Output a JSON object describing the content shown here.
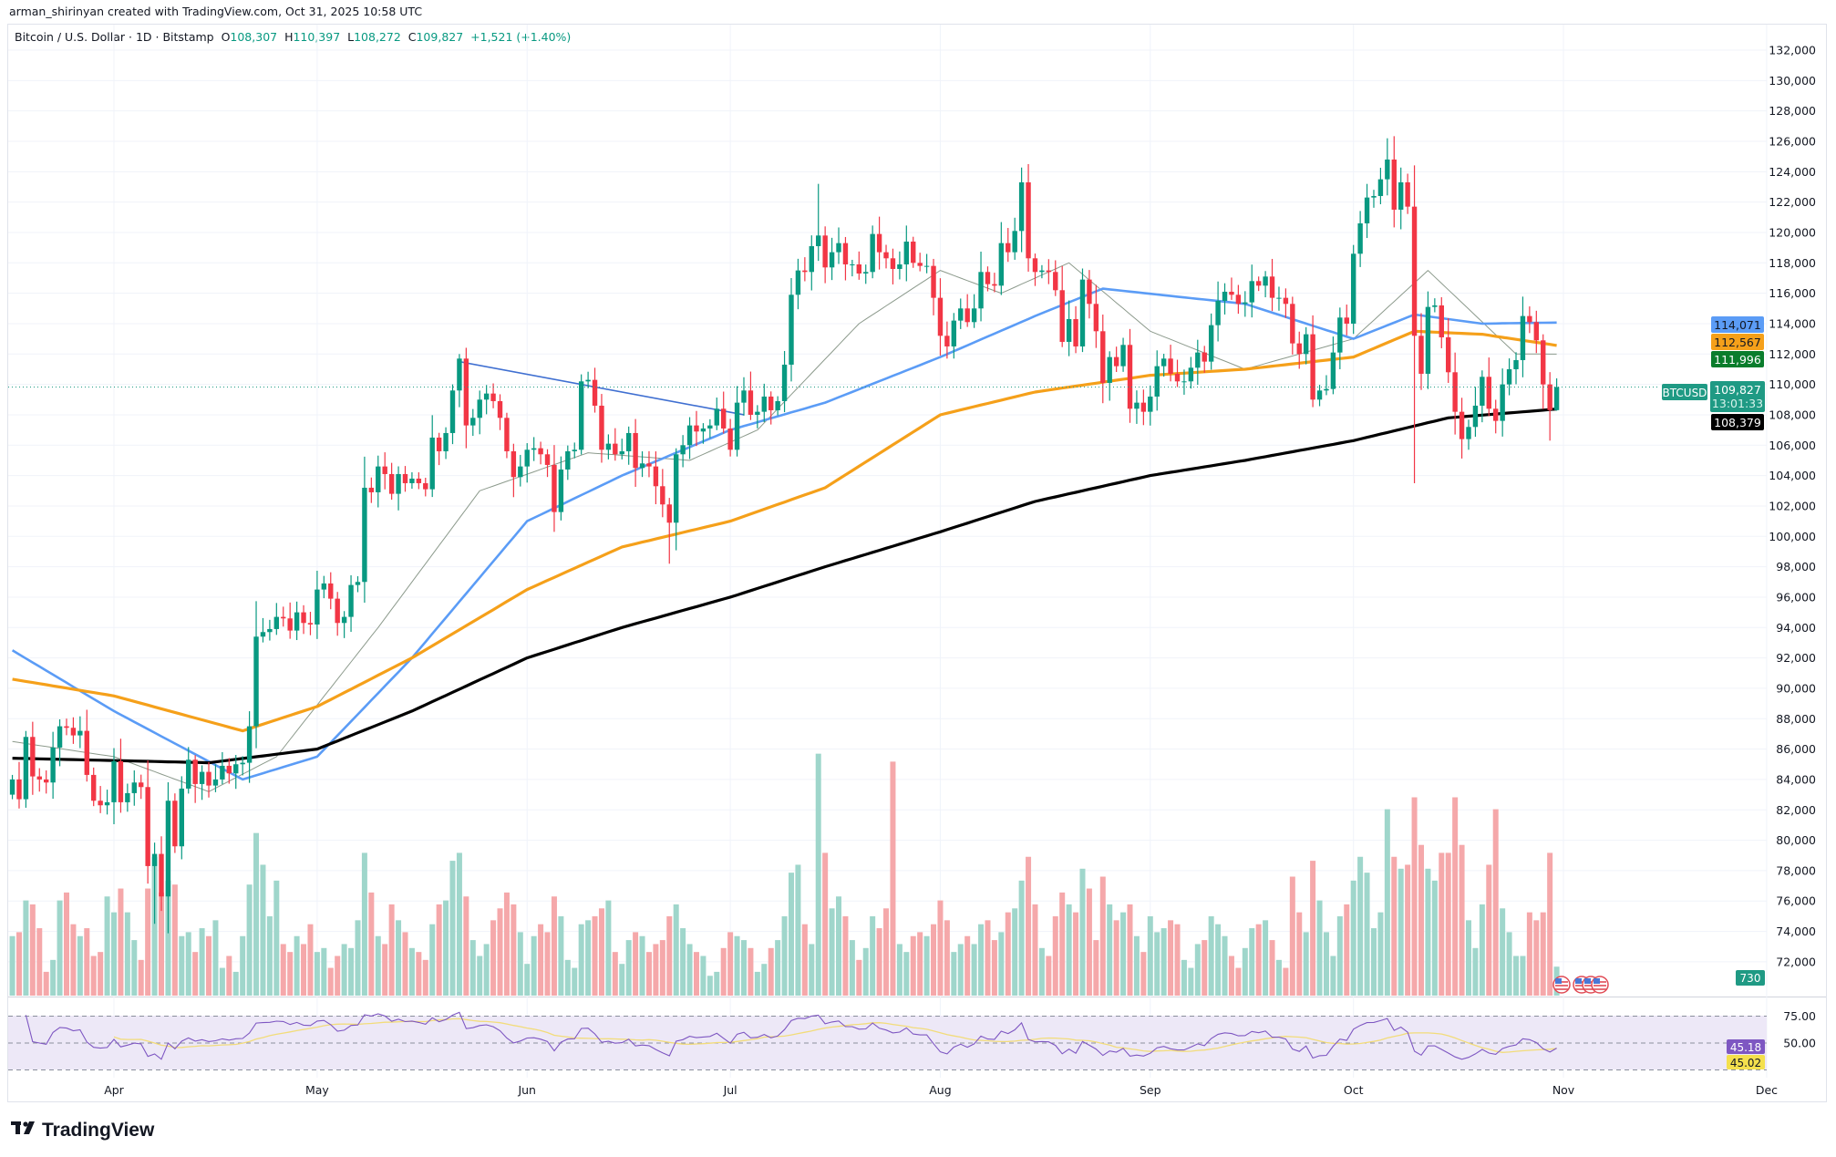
{
  "attribution": "arman_shirinyan created with TradingView.com, Oct 31, 2025 10:58 UTC",
  "legend": {
    "symbol": "Bitcoin / U.S. Dollar · 1D · Bitstamp",
    "o_label": "O",
    "o": "108,307",
    "h_label": "H",
    "h": "110,397",
    "l_label": "L",
    "l": "108,272",
    "c_label": "C",
    "c": "109,827",
    "change": "+1,521 (+1.40%)"
  },
  "tags": {
    "sma50": "114,071",
    "sma100": "112,567",
    "sma20": "111,996",
    "symbol": "BTCUSD",
    "last_price": "109,827",
    "countdown": "13:01:33",
    "sma200": "108,379",
    "volume": "730",
    "rsi": "45.18",
    "rsi_ma": "45.02"
  },
  "logo": {
    "mark": "17",
    "name": "TradingView"
  },
  "colors": {
    "up": "#089981",
    "down": "#f23645",
    "vol_up": "#9fd6cb",
    "vol_down": "#f5a8aa",
    "sma20": "#8c9a8c",
    "sma50": "#5b9cf6",
    "sma100": "#f5a01a",
    "sma200": "#000000",
    "trendline": "#3f6fd1",
    "rsi": "#7e57c2",
    "rsi_ma": "#f2dc7a",
    "rsi_band": "#ede8f7",
    "tag_green": "#0a7d2c",
    "tag_teal": "#1f9a84"
  },
  "chart_data": {
    "type": "candlestick",
    "interval": "1D",
    "start": "2025-03-17",
    "y_ticks": [
      132000,
      130000,
      128000,
      126000,
      124000,
      122000,
      120000,
      118000,
      116000,
      114000,
      112000,
      110000,
      108000,
      106000,
      104000,
      102000,
      100000,
      98000,
      96000,
      94000,
      92000,
      90000,
      88000,
      86000,
      84000,
      82000,
      80000,
      78000,
      76000,
      74000,
      72000
    ],
    "ylim": [
      71000,
      133000
    ],
    "x_ticks": [
      {
        "label": "Apr",
        "date": "2025-04-01"
      },
      {
        "label": "May",
        "date": "2025-05-01"
      },
      {
        "label": "Jun",
        "date": "2025-06-01"
      },
      {
        "label": "Jul",
        "date": "2025-07-01"
      },
      {
        "label": "Aug",
        "date": "2025-08-01"
      },
      {
        "label": "Sep",
        "date": "2025-09-01"
      },
      {
        "label": "Oct",
        "date": "2025-10-01"
      },
      {
        "label": "Nov",
        "date": "2025-11-01"
      },
      {
        "label": "Dec",
        "date": "2025-12-01"
      }
    ],
    "first_open": 83000,
    "closes": [
      84000,
      82700,
      86800,
      84200,
      84000,
      83800,
      86100,
      87500,
      87400,
      86900,
      87200,
      84300,
      82600,
      82300,
      82500,
      85200,
      82500,
      83100,
      83800,
      83500,
      78300,
      79100,
      76300,
      82600,
      79600,
      83400,
      85300,
      83700,
      84500,
      83600,
      84000,
      84900,
      84400,
      85000,
      85100,
      87500,
      93400,
      93700,
      93900,
      94700,
      94600,
      93800,
      95000,
      94300,
      94200,
      96500,
      96900,
      95900,
      94300,
      94700,
      96800,
      97000,
      103200,
      102900,
      104600,
      104100,
      102800,
      104100,
      103500,
      103800,
      103500,
      103100,
      106500,
      105600,
      106800,
      109600,
      111700,
      107300,
      107800,
      109000,
      109400,
      108900,
      107800,
      105600,
      103900,
      104600,
      105700,
      105800,
      105400,
      104700,
      101600,
      104400,
      105600,
      105700,
      110200,
      110300,
      108600,
      105700,
      106100,
      105400,
      105600,
      106800,
      104500,
      104800,
      104600,
      103300,
      102100,
      100900,
      105400,
      106000,
      107300,
      106900,
      107100,
      107300,
      108400,
      107100,
      105700,
      108800,
      109600,
      108000,
      108200,
      109200,
      108300,
      108900,
      111300,
      115900,
      117500,
      117400,
      119100,
      119800,
      117700,
      118700,
      119300,
      117900,
      117900,
      117300,
      117400,
      119900,
      118700,
      118300,
      117600,
      117900,
      119400,
      118000,
      117800,
      117800,
      115700,
      113200,
      112500,
      114200,
      115000,
      114100,
      115000,
      117400,
      116600,
      116500,
      119300,
      118700,
      120100,
      123300,
      118300,
      117400,
      117500,
      117400,
      116200,
      112800,
      114300,
      112500,
      116900,
      115300,
      113500,
      110100,
      111800,
      111200,
      112600,
      108400,
      108800,
      108200,
      109200,
      111200,
      111700,
      110700,
      110200,
      110200,
      111100,
      112100,
      111500,
      113900,
      115500,
      116100,
      115900,
      115300,
      115400,
      116800,
      116500,
      117100,
      115700,
      115700,
      115300,
      112700,
      112000,
      113300,
      109000,
      109600,
      109700,
      112100,
      114400,
      114000,
      118600,
      120600,
      122300,
      122400,
      123500,
      124800,
      121500,
      123300,
      121700,
      113200,
      110700,
      115100,
      115200,
      113100,
      110800,
      108200,
      106400,
      107200,
      108600,
      110500,
      108400,
      107600,
      110000,
      111000,
      111600,
      114500,
      114100,
      112900,
      110000,
      108307,
      109827
    ],
    "last_candle": {
      "date": "2025-10-31",
      "open": 108307,
      "high": 110397,
      "low": 108272,
      "close": 109827
    },
    "notable_wicks": [
      {
        "date": "2025-04-07",
        "low": 74500
      },
      {
        "date": "2025-06-22",
        "low": 98200
      },
      {
        "date": "2025-05-22",
        "high": 112000
      },
      {
        "date": "2025-07-14",
        "high": 123200
      },
      {
        "date": "2025-08-14",
        "high": 124500
      },
      {
        "date": "2025-10-06",
        "high": 126200
      },
      {
        "date": "2025-10-10",
        "low": 103500
      },
      {
        "date": "2025-10-30",
        "low": 106300
      }
    ],
    "volume": [
      1500,
      1600,
      2400,
      2300,
      1700,
      600,
      900,
      2400,
      2600,
      1800,
      1500,
      1700,
      1000,
      1100,
      2500,
      2100,
      2700,
      2100,
      1400,
      900,
      2700,
      3500,
      2600,
      2900,
      2800,
      1500,
      1600,
      1100,
      1700,
      1500,
      1900,
      700,
      1000,
      600,
      1500,
      2800,
      4100,
      3300,
      2000,
      2900,
      1300,
      1100,
      1500,
      1300,
      1800,
      1100,
      1200,
      700,
      1000,
      1300,
      1200,
      1900,
      3600,
      2600,
      1500,
      1300,
      2300,
      1900,
      1600,
      1200,
      1100,
      900,
      1800,
      2300,
      2400,
      3400,
      3600,
      2500,
      1400,
      1000,
      1300,
      1900,
      2200,
      2600,
      2300,
      1600,
      800,
      1500,
      1800,
      1600,
      2500,
      2000,
      900,
      700,
      1800,
      1900,
      2000,
      2200,
      2400,
      1100,
      800,
      1400,
      1600,
      1500,
      1100,
      1300,
      1400,
      2000,
      2300,
      1700,
      1300,
      1100,
      1000,
      500,
      600,
      1200,
      1600,
      1500,
      1400,
      1200,
      600,
      800,
      1200,
      1400,
      2000,
      3100,
      3300,
      1800,
      1300,
      6100,
      3600,
      2200,
      2500,
      2000,
      1400,
      900,
      1200,
      2000,
      1700,
      2200,
      5900,
      1300,
      1100,
      1500,
      1600,
      1500,
      1800,
      2400,
      1900,
      1100,
      1300,
      1500,
      1300,
      1800,
      1900,
      1400,
      1600,
      2100,
      2200,
      2900,
      3500,
      2300,
      1200,
      1000,
      2000,
      2600,
      2300,
      2100,
      3200,
      2700,
      1400,
      3000,
      2300,
      1900,
      2100,
      2300,
      1500,
      1100,
      2000,
      1600,
      1700,
      1900,
      1800,
      900,
      700,
      1300,
      1400,
      2000,
      1800,
      1500,
      1000,
      700,
      1200,
      1700,
      1800,
      1900,
      1400,
      900,
      700,
      3000,
      2100,
      1600,
      3400,
      2400,
      1600,
      1000,
      2000,
      2300,
      2900,
      3500,
      3100,
      1700,
      2100,
      4700,
      3500,
      3200,
      3300,
      5000,
      3800,
      3200,
      2900,
      3600,
      3600,
      5000,
      3800,
      1900,
      1200,
      2300,
      3300,
      4700,
      2200,
      1600,
      1000,
      1000,
      2100,
      1900,
      2100,
      3600,
      730
    ],
    "moving_averages": [
      {
        "name": "SMA20",
        "points": [
          [
            "2025-03-17",
            86500
          ],
          [
            "2025-04-01",
            85500
          ],
          [
            "2025-04-15",
            83200
          ],
          [
            "2025-04-25",
            85500
          ],
          [
            "2025-05-10",
            94000
          ],
          [
            "2025-05-25",
            103000
          ],
          [
            "2025-06-10",
            105500
          ],
          [
            "2025-06-25",
            105000
          ],
          [
            "2025-07-05",
            107000
          ],
          [
            "2025-07-20",
            114000
          ],
          [
            "2025-08-01",
            117500
          ],
          [
            "2025-08-10",
            116000
          ],
          [
            "2025-08-20",
            118000
          ],
          [
            "2025-09-01",
            113500
          ],
          [
            "2025-09-15",
            111000
          ],
          [
            "2025-10-01",
            113000
          ],
          [
            "2025-10-12",
            117500
          ],
          [
            "2025-10-25",
            112000
          ],
          [
            "2025-10-31",
            111996
          ]
        ]
      },
      {
        "name": "SMA50",
        "points": [
          [
            "2025-03-17",
            92500
          ],
          [
            "2025-04-01",
            88500
          ],
          [
            "2025-04-20",
            84000
          ],
          [
            "2025-05-01",
            85500
          ],
          [
            "2025-05-15",
            92000
          ],
          [
            "2025-06-01",
            101000
          ],
          [
            "2025-06-15",
            104000
          ],
          [
            "2025-07-01",
            107000
          ],
          [
            "2025-07-15",
            108800
          ],
          [
            "2025-08-01",
            111800
          ],
          [
            "2025-08-15",
            114500
          ],
          [
            "2025-08-25",
            116300
          ],
          [
            "2025-09-15",
            115300
          ],
          [
            "2025-10-01",
            113000
          ],
          [
            "2025-10-10",
            114600
          ],
          [
            "2025-10-20",
            114000
          ],
          [
            "2025-10-31",
            114071
          ]
        ]
      },
      {
        "name": "SMA100",
        "points": [
          [
            "2025-03-17",
            90600
          ],
          [
            "2025-04-01",
            89500
          ],
          [
            "2025-04-20",
            87200
          ],
          [
            "2025-05-01",
            88800
          ],
          [
            "2025-05-15",
            92000
          ],
          [
            "2025-06-01",
            96500
          ],
          [
            "2025-06-15",
            99300
          ],
          [
            "2025-07-01",
            101000
          ],
          [
            "2025-07-15",
            103200
          ],
          [
            "2025-08-01",
            108000
          ],
          [
            "2025-08-15",
            109500
          ],
          [
            "2025-09-01",
            110600
          ],
          [
            "2025-09-15",
            111000
          ],
          [
            "2025-10-01",
            111800
          ],
          [
            "2025-10-10",
            113500
          ],
          [
            "2025-10-20",
            113300
          ],
          [
            "2025-10-31",
            112567
          ]
        ]
      },
      {
        "name": "SMA200",
        "points": [
          [
            "2025-03-17",
            85400
          ],
          [
            "2025-04-15",
            85100
          ],
          [
            "2025-05-01",
            86000
          ],
          [
            "2025-05-15",
            88500
          ],
          [
            "2025-06-01",
            92000
          ],
          [
            "2025-06-15",
            94000
          ],
          [
            "2025-07-01",
            96000
          ],
          [
            "2025-07-15",
            98000
          ],
          [
            "2025-08-01",
            100300
          ],
          [
            "2025-08-15",
            102300
          ],
          [
            "2025-09-01",
            104000
          ],
          [
            "2025-09-15",
            105000
          ],
          [
            "2025-10-01",
            106300
          ],
          [
            "2025-10-15",
            107800
          ],
          [
            "2025-10-31",
            108379
          ]
        ]
      }
    ],
    "trendline": [
      [
        "2025-05-22",
        111500
      ],
      [
        "2025-07-03",
        108000
      ]
    ],
    "rsi": {
      "levels": [
        75,
        50,
        25
      ],
      "level_labels": [
        "75.00",
        "50.00"
      ],
      "period": 14,
      "last": 45.18,
      "ma_last": 45.02
    },
    "volume_axis": {
      "label": "730"
    }
  }
}
